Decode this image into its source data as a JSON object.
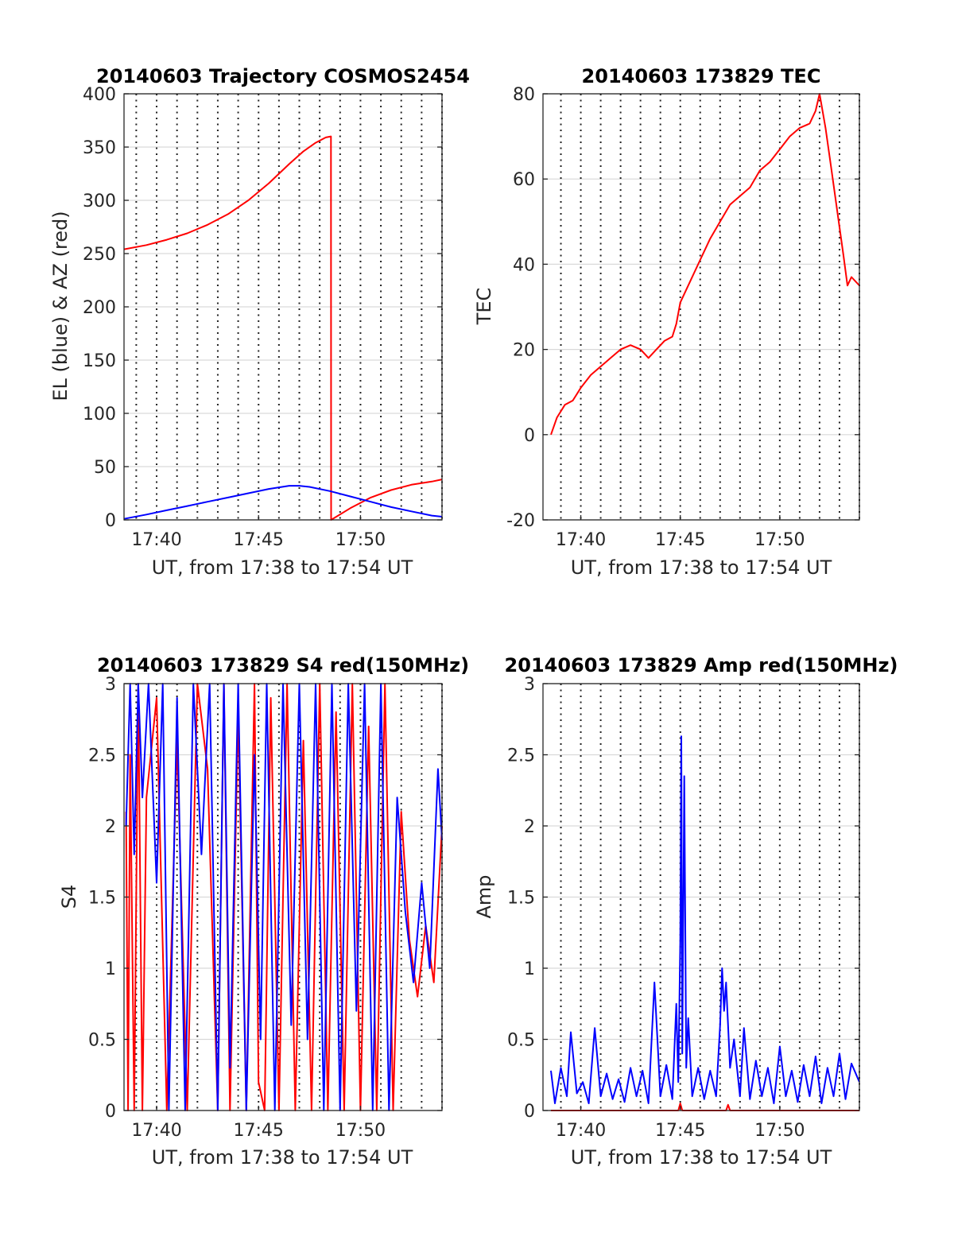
{
  "colors": {
    "red": "#ff0000",
    "blue": "#0000ff",
    "grid": "#d9d9d9",
    "axis": "#262626"
  },
  "chart_data": [
    {
      "id": "trajectory",
      "type": "line",
      "title": "20140603 Trajectory COSMOS2454",
      "xlabel": "UT, from 17:38 to 17:54 UT",
      "ylabel": "EL (blue) & AZ (red)",
      "xlim_min": [
        38.4,
        54.0
      ],
      "ylim": [
        0,
        400
      ],
      "yticks": [
        0,
        50,
        100,
        150,
        200,
        250,
        300,
        350,
        400
      ],
      "xticks": [
        40,
        45,
        50
      ],
      "xtick_labels": [
        "17:40",
        "17:45",
        "17:50"
      ],
      "grid": true,
      "series": [
        {
          "color": "red",
          "x": [
            38.4,
            39.5,
            40.5,
            41.5,
            42.5,
            43.5,
            44.5,
            45.5,
            46.5,
            47.2,
            47.8,
            48.3,
            48.55,
            48.56,
            49.5,
            50.5,
            51.5,
            52.5,
            53.5,
            54.0
          ],
          "y": [
            254,
            258,
            263,
            269,
            277,
            287,
            300,
            316,
            334,
            346,
            354,
            359,
            360,
            0,
            11,
            21,
            28,
            33,
            36,
            38
          ]
        },
        {
          "color": "blue",
          "x": [
            38.4,
            39.5,
            40.5,
            41.5,
            42.5,
            43.5,
            44.5,
            45.5,
            46.5,
            47.0,
            47.5,
            48.5,
            49.5,
            50.5,
            51.5,
            52.5,
            53.5,
            54.0
          ],
          "y": [
            1,
            5,
            9,
            13,
            17,
            21,
            25,
            29,
            32,
            32,
            31,
            27,
            22,
            17,
            12,
            8,
            4,
            3
          ]
        }
      ]
    },
    {
      "id": "tec",
      "type": "line",
      "title": "20140603 173829 TEC",
      "xlabel": "UT, from 17:38 to 17:54 UT",
      "ylabel": "TEC",
      "xlim_min": [
        38.1,
        54.0
      ],
      "ylim": [
        -20,
        80
      ],
      "yticks": [
        -20,
        0,
        20,
        40,
        60,
        80
      ],
      "xticks": [
        40,
        45,
        50
      ],
      "xtick_labels": [
        "17:40",
        "17:45",
        "17:50"
      ],
      "grid": true,
      "series": [
        {
          "color": "red",
          "x": [
            38.5,
            38.8,
            39.2,
            39.6,
            40.0,
            40.5,
            41.0,
            41.5,
            42.0,
            42.5,
            43.0,
            43.4,
            43.8,
            44.2,
            44.6,
            44.8,
            45.0,
            45.5,
            46.0,
            46.5,
            47.0,
            47.5,
            48.0,
            48.5,
            49.0,
            49.5,
            50.0,
            50.5,
            51.0,
            51.5,
            51.8,
            52.0,
            52.3,
            52.6,
            52.9,
            53.2,
            53.4,
            53.6,
            54.0
          ],
          "y": [
            0,
            4,
            7,
            8,
            11,
            14,
            16,
            18,
            20,
            21,
            20,
            18,
            20,
            22,
            23,
            26,
            31,
            36,
            41,
            46,
            50,
            54,
            56,
            58,
            62,
            64,
            67,
            70,
            72,
            73,
            76,
            80,
            72,
            62,
            52,
            42,
            35,
            37,
            35
          ]
        }
      ]
    },
    {
      "id": "s4",
      "type": "line",
      "title": "20140603 173829 S4 red(150MHz)",
      "xlabel": "UT, from 17:38 to 17:54 UT",
      "ylabel": "S4",
      "xlim_min": [
        38.4,
        54.0
      ],
      "ylim": [
        0,
        3
      ],
      "yticks": [
        0,
        0.5,
        1,
        1.5,
        2,
        2.5,
        3
      ],
      "ytick_labels": [
        "0",
        "0.5",
        "1",
        "1.5",
        "2",
        "2.5",
        "3"
      ],
      "xticks": [
        40,
        45,
        50
      ],
      "xtick_labels": [
        "17:40",
        "17:45",
        "17:50"
      ],
      "grid": true,
      "series": [
        {
          "color": "red",
          "x": [
            38.5,
            38.6,
            38.7,
            38.9,
            39.1,
            39.3,
            39.5,
            40.0,
            40.5,
            41.0,
            41.5,
            42.0,
            42.5,
            43.0,
            43.3,
            43.6,
            44.0,
            44.4,
            44.8,
            45.0,
            45.3,
            45.6,
            46.0,
            46.4,
            46.8,
            47.2,
            47.6,
            48.0,
            48.4,
            48.8,
            49.2,
            49.6,
            50.0,
            50.4,
            50.8,
            51.2,
            51.6,
            52.0,
            52.4,
            52.8,
            53.2,
            53.6,
            54.0
          ],
          "y": [
            2.1,
            0,
            2.5,
            0,
            3,
            0,
            2.2,
            2.9,
            0,
            2.6,
            0,
            3,
            2.4,
            0,
            3,
            0,
            2.8,
            0,
            3,
            0.2,
            0,
            2.9,
            0,
            3,
            0,
            2.6,
            0,
            3,
            0,
            2.8,
            0,
            3,
            0,
            2.7,
            0,
            3,
            0,
            2.1,
            1.2,
            0.8,
            1.3,
            0.9,
            2.0
          ]
        },
        {
          "color": "blue",
          "x": [
            38.5,
            38.7,
            38.9,
            39.1,
            39.3,
            39.6,
            40.0,
            40.3,
            40.6,
            41.0,
            41.4,
            41.8,
            42.2,
            42.6,
            43.0,
            43.3,
            43.6,
            44.0,
            44.4,
            44.8,
            45.1,
            45.4,
            45.8,
            46.2,
            46.6,
            47.0,
            47.4,
            47.8,
            48.2,
            48.6,
            49.0,
            49.4,
            49.8,
            50.2,
            50.6,
            51.0,
            51.4,
            51.8,
            52.2,
            52.6,
            53.0,
            53.4,
            53.8,
            54.0
          ],
          "y": [
            2.0,
            3,
            1.8,
            3,
            2.2,
            3,
            1.6,
            3,
            0,
            2.9,
            0,
            3,
            1.8,
            3,
            0,
            3,
            0.3,
            3,
            0,
            2.5,
            0.5,
            3,
            0,
            3,
            0.6,
            3,
            0.5,
            3,
            0,
            3,
            0,
            3,
            0.7,
            3,
            0,
            3,
            0,
            2.2,
            1.4,
            0.9,
            1.6,
            1.0,
            2.4,
            1.9
          ]
        }
      ]
    },
    {
      "id": "amp",
      "type": "line",
      "title": "20140603 173829 Amp red(150MHz)",
      "xlabel": "UT, from 17:38 to 17:54 UT",
      "ylabel": "Amp",
      "xlim_min": [
        38.1,
        54.0
      ],
      "ylim": [
        0,
        3
      ],
      "yticks": [
        0,
        0.5,
        1,
        1.5,
        2,
        2.5,
        3
      ],
      "ytick_labels": [
        "0",
        "0.5",
        "1",
        "1.5",
        "2",
        "2.5",
        "3"
      ],
      "xticks": [
        40,
        45,
        50
      ],
      "xtick_labels": [
        "17:40",
        "17:45",
        "17:50"
      ],
      "grid": true,
      "series": [
        {
          "color": "red",
          "x": [
            38.5,
            44.9,
            45.0,
            45.1,
            47.3,
            47.4,
            47.5,
            54.0
          ],
          "y": [
            0,
            0,
            0.05,
            0,
            0,
            0.04,
            0,
            0
          ]
        },
        {
          "color": "blue",
          "x": [
            38.5,
            38.7,
            39.0,
            39.3,
            39.5,
            39.8,
            40.1,
            40.4,
            40.7,
            41.0,
            41.3,
            41.6,
            41.9,
            42.2,
            42.5,
            42.8,
            43.1,
            43.4,
            43.7,
            44.0,
            44.3,
            44.6,
            44.8,
            44.9,
            45.0,
            45.05,
            45.1,
            45.2,
            45.3,
            45.4,
            45.6,
            45.9,
            46.2,
            46.5,
            46.8,
            47.0,
            47.1,
            47.2,
            47.3,
            47.5,
            47.7,
            48.0,
            48.2,
            48.5,
            48.8,
            49.1,
            49.4,
            49.7,
            50.0,
            50.3,
            50.6,
            50.9,
            51.2,
            51.5,
            51.8,
            52.1,
            52.4,
            52.7,
            53.0,
            53.3,
            53.6,
            54.0
          ],
          "y": [
            0.28,
            0.05,
            0.3,
            0.1,
            0.55,
            0.12,
            0.2,
            0.05,
            0.58,
            0.1,
            0.26,
            0.08,
            0.22,
            0.06,
            0.3,
            0.1,
            0.28,
            0.05,
            0.9,
            0.1,
            0.32,
            0.08,
            0.75,
            0.2,
            1.2,
            2.63,
            0.4,
            2.35,
            0.3,
            0.65,
            0.1,
            0.3,
            0.08,
            0.28,
            0.1,
            0.6,
            1.0,
            0.7,
            0.9,
            0.3,
            0.5,
            0.1,
            0.58,
            0.08,
            0.35,
            0.1,
            0.3,
            0.05,
            0.45,
            0.1,
            0.28,
            0.06,
            0.32,
            0.1,
            0.38,
            0.05,
            0.3,
            0.1,
            0.4,
            0.08,
            0.33,
            0.2
          ]
        }
      ]
    }
  ]
}
